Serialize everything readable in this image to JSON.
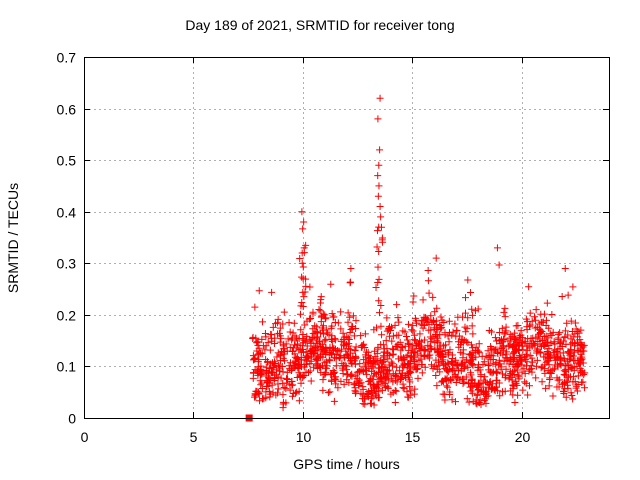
{
  "chart_data": {
    "type": "scatter",
    "title": "Day 189 of 2021, SRMTID for receiver tong",
    "xlabel": "GPS time / hours",
    "ylabel": "SRMTID / TECUs",
    "xlim": [
      0,
      24
    ],
    "ylim": [
      0,
      0.7
    ],
    "xticks": [
      0,
      5,
      10,
      15,
      20
    ],
    "yticks": [
      0,
      0.1,
      0.2,
      0.3,
      0.4,
      0.5,
      0.6,
      0.7
    ],
    "grid": true,
    "series": [
      {
        "name": "SRMTID",
        "marker": "+",
        "color": "#ff0000",
        "x_range": [
          7.7,
          22.9
        ],
        "approx_points": 1600,
        "typical_range": [
          0.03,
          0.25
        ],
        "spikes": [
          {
            "x": 10.0,
            "values": [
              0.27,
              0.3,
              0.32,
              0.33,
              0.38,
              0.4
            ]
          },
          {
            "x": 13.5,
            "values": [
              0.37,
              0.39,
              0.41,
              0.43,
              0.45,
              0.47,
              0.49,
              0.52,
              0.58,
              0.62
            ]
          }
        ],
        "outliers": [
          {
            "x": 18.9,
            "y": 0.33
          },
          {
            "x": 16.1,
            "y": 0.31
          },
          {
            "x": 12.2,
            "y": 0.29
          },
          {
            "x": 22.0,
            "y": 0.29
          },
          {
            "x": 9.1,
            "y": 0.02
          },
          {
            "x": 19.7,
            "y": 0.03
          }
        ]
      },
      {
        "name": "zero-marker",
        "marker": "square",
        "color": "#ff0000",
        "points": [
          {
            "x": 7.55,
            "y": 0.0
          }
        ]
      }
    ]
  }
}
